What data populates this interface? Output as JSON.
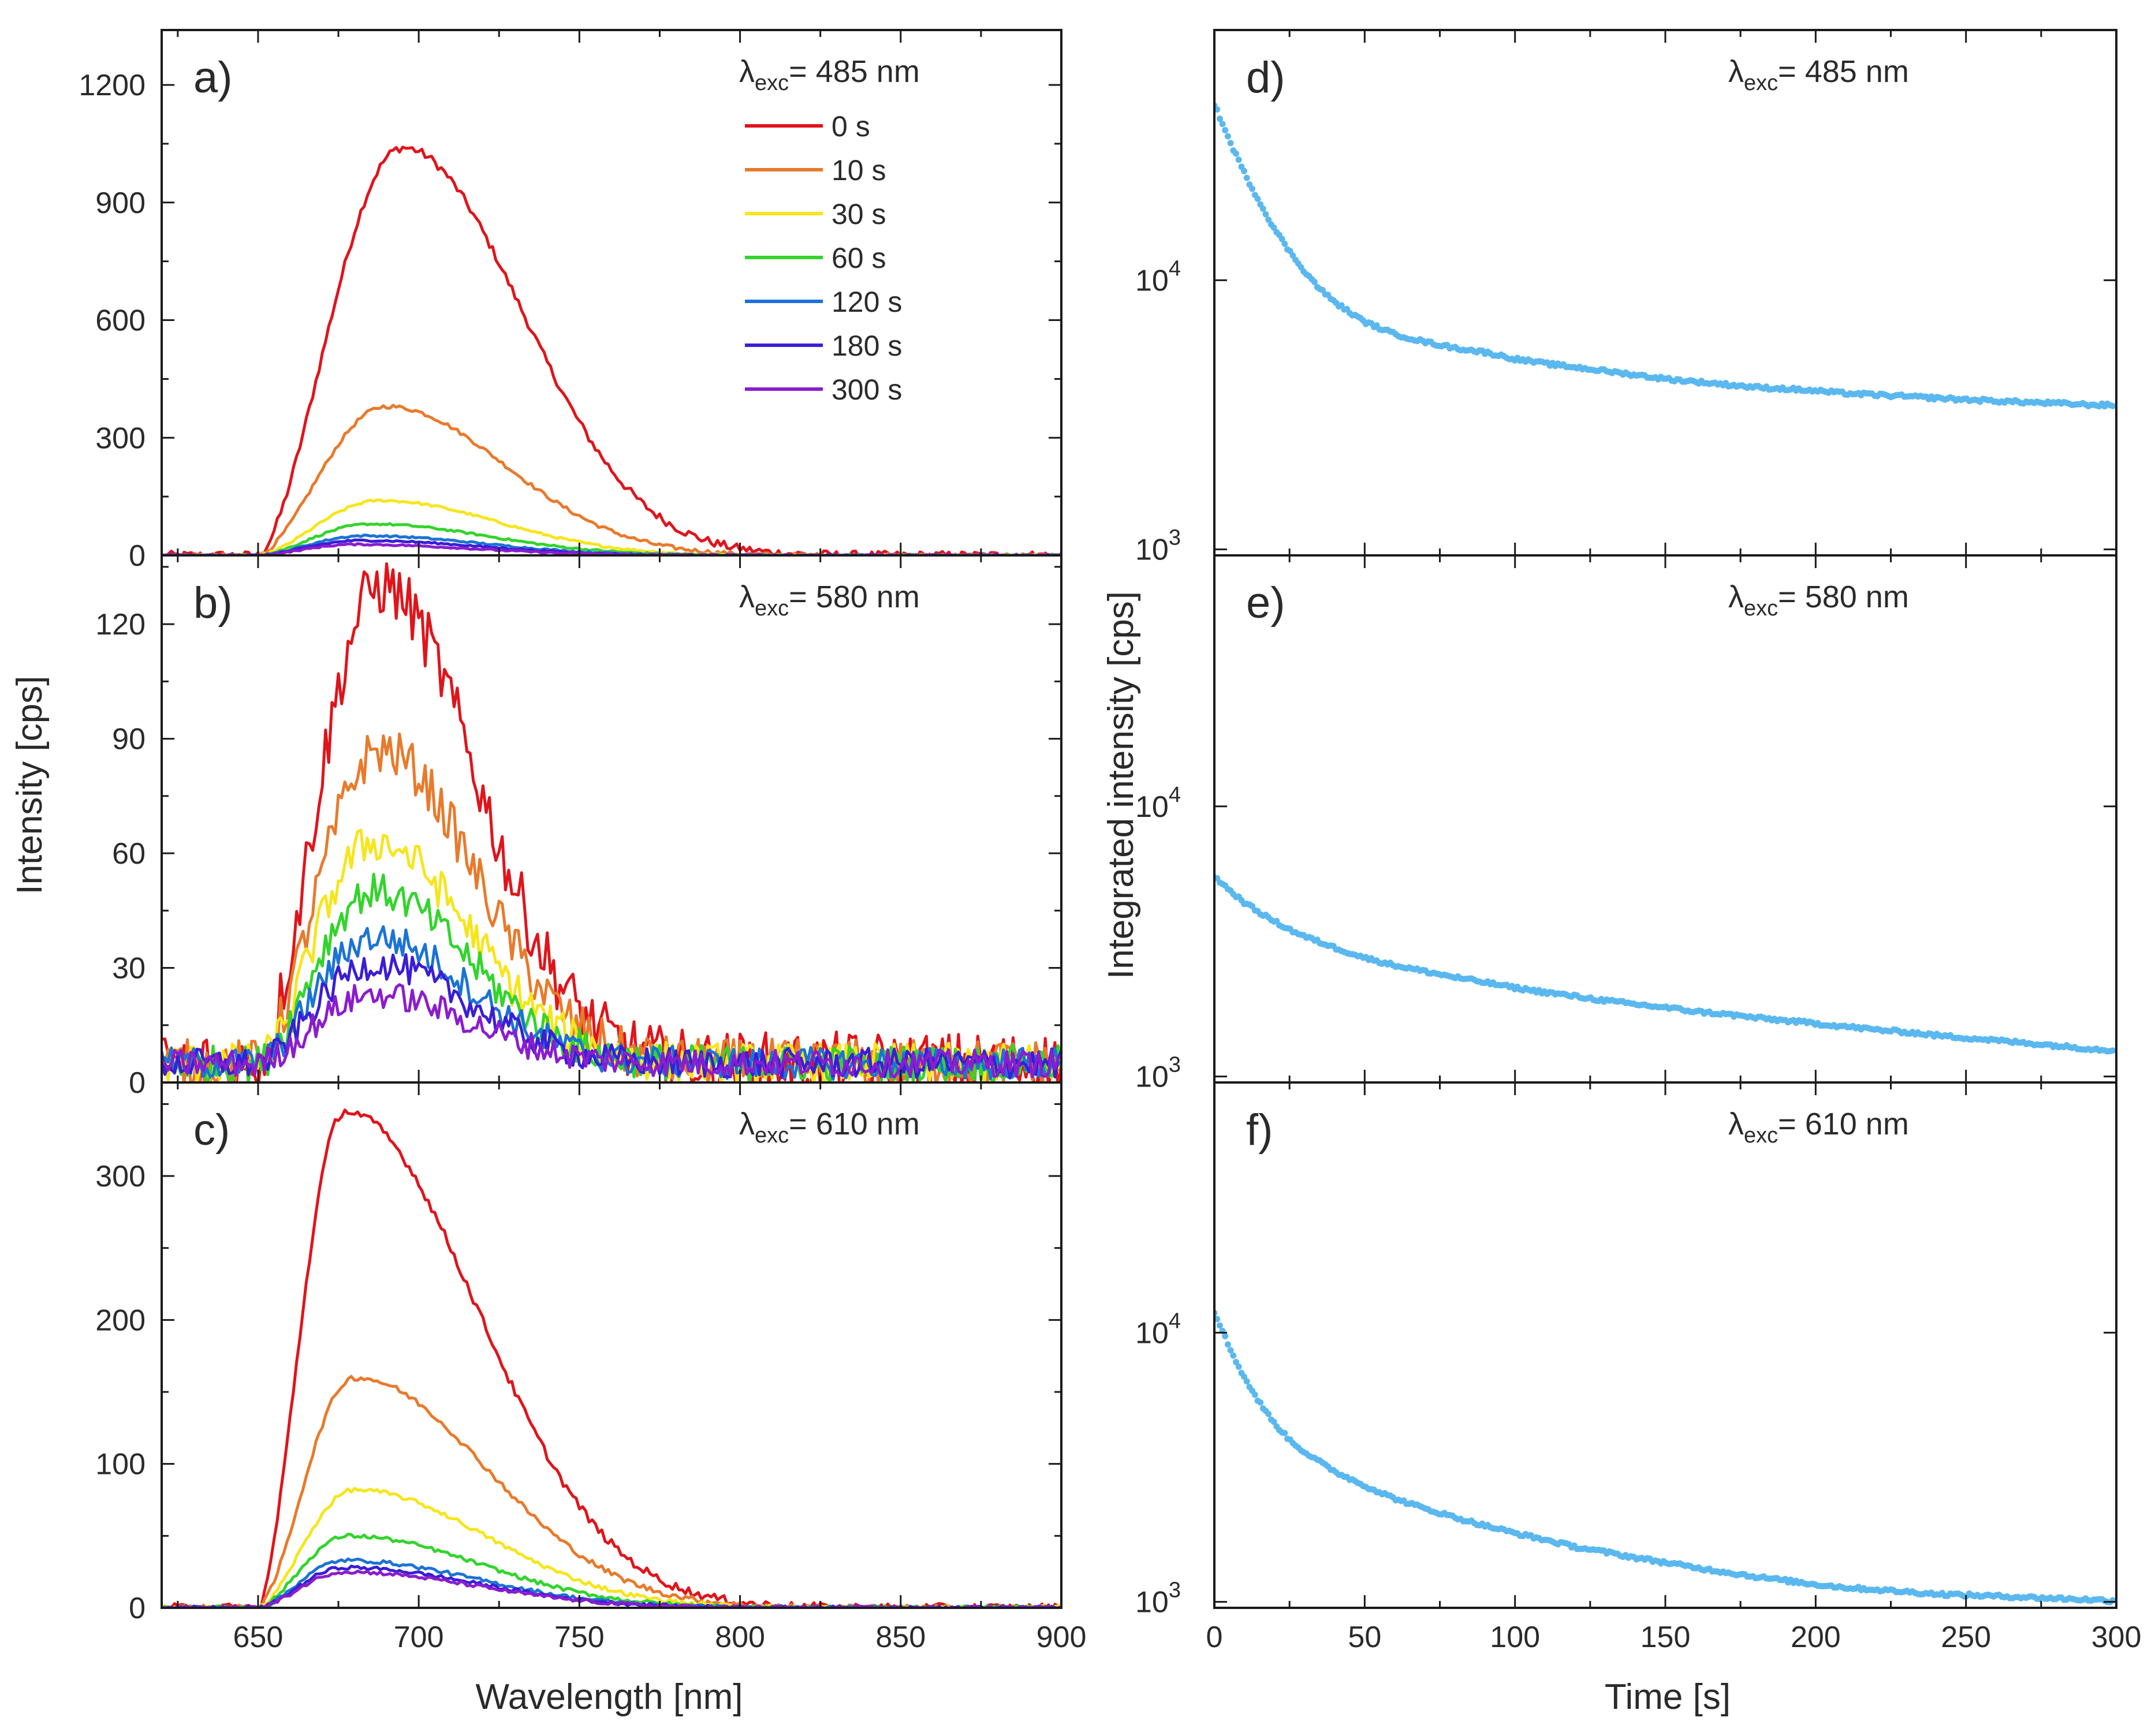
{
  "figure": {
    "left_xlabel": "Wavelength [nm]",
    "left_ylabel": "Intensity [cps]",
    "right_xlabel": "Time [s]",
    "right_ylabel": "Integrated intensity [cps]"
  },
  "legend": [
    {
      "label": "0 s",
      "color": "#e0141b"
    },
    {
      "label": "10 s",
      "color": "#e87a2b"
    },
    {
      "label": "30 s",
      "color": "#f6e51c"
    },
    {
      "label": "60 s",
      "color": "#33d42c"
    },
    {
      "label": "120 s",
      "color": "#1b73d6"
    },
    {
      "label": "180 s",
      "color": "#3a1ed6"
    },
    {
      "label": "300 s",
      "color": "#8a1dce"
    }
  ],
  "chart_data": [
    {
      "type": "line",
      "panel": "a)",
      "excitation": "485 nm",
      "title": "",
      "xlabel": "Wavelength [nm]",
      "ylabel": "Intensity [cps]",
      "xlim": [
        620,
        900
      ],
      "ylim": [
        0,
        1340
      ],
      "xticks": [
        650,
        700,
        750,
        800,
        850,
        900
      ],
      "yticks": [
        0,
        300,
        600,
        900,
        1200
      ],
      "legend_position": "top-right",
      "series": [
        {
          "name": "0 s",
          "peak_wavelength": 695,
          "peak_intensity": 1040
        },
        {
          "name": "10 s",
          "peak_wavelength": 690,
          "peak_intensity": 380
        },
        {
          "name": "30 s",
          "peak_wavelength": 688,
          "peak_intensity": 140
        },
        {
          "name": "60 s",
          "peak_wavelength": 685,
          "peak_intensity": 80
        },
        {
          "name": "120 s",
          "peak_wavelength": 683,
          "peak_intensity": 50
        },
        {
          "name": "180 s",
          "peak_wavelength": 682,
          "peak_intensity": 38
        },
        {
          "name": "300 s",
          "peak_wavelength": 680,
          "peak_intensity": 28
        }
      ]
    },
    {
      "type": "line",
      "panel": "b)",
      "excitation": "580 nm",
      "title": "",
      "xlabel": "Wavelength [nm]",
      "ylabel": "Intensity [cps]",
      "xlim": [
        620,
        900
      ],
      "ylim": [
        0,
        138
      ],
      "xticks": [
        650,
        700,
        750,
        800,
        850,
        900
      ],
      "yticks": [
        0,
        30,
        60,
        90,
        120
      ],
      "series": [
        {
          "name": "0 s",
          "peak_wavelength": 688,
          "peak_intensity": 130
        },
        {
          "name": "10 s",
          "peak_wavelength": 688,
          "peak_intensity": 87
        },
        {
          "name": "30 s",
          "peak_wavelength": 686,
          "peak_intensity": 63
        },
        {
          "name": "60 s",
          "peak_wavelength": 686,
          "peak_intensity": 50
        },
        {
          "name": "120 s",
          "peak_wavelength": 686,
          "peak_intensity": 38
        },
        {
          "name": "180 s",
          "peak_wavelength": 686,
          "peak_intensity": 31
        },
        {
          "name": "300 s",
          "peak_wavelength": 686,
          "peak_intensity": 23
        }
      ]
    },
    {
      "type": "line",
      "panel": "c)",
      "excitation": "610 nm",
      "title": "",
      "xlabel": "Wavelength [nm]",
      "ylabel": "Intensity [cps]",
      "xlim": [
        620,
        900
      ],
      "ylim": [
        0,
        365
      ],
      "xticks": [
        650,
        700,
        750,
        800,
        850,
        900
      ],
      "yticks": [
        0,
        100,
        200,
        300
      ],
      "series": [
        {
          "name": "0 s",
          "peak_wavelength": 677,
          "peak_intensity": 345
        },
        {
          "name": "10 s",
          "peak_wavelength": 680,
          "peak_intensity": 160
        },
        {
          "name": "30 s",
          "peak_wavelength": 680,
          "peak_intensity": 82
        },
        {
          "name": "60 s",
          "peak_wavelength": 678,
          "peak_intensity": 50
        },
        {
          "name": "120 s",
          "peak_wavelength": 677,
          "peak_intensity": 33
        },
        {
          "name": "180 s",
          "peak_wavelength": 677,
          "peak_intensity": 28
        },
        {
          "name": "300 s",
          "peak_wavelength": 677,
          "peak_intensity": 25
        }
      ]
    },
    {
      "type": "scatter",
      "panel": "d)",
      "excitation": "485 nm",
      "title": "",
      "xlabel": "Time [s]",
      "ylabel": "Integrated intensity [cps]",
      "xlim": [
        0,
        300
      ],
      "ylim": [
        950,
        85000
      ],
      "yscale": "log",
      "xticks": [
        0,
        50,
        100,
        150,
        200,
        250,
        300
      ],
      "yticks": [
        1000,
        10000
      ],
      "color": "#5bb8ef",
      "x": [
        0,
        5,
        10,
        15,
        20,
        25,
        30,
        35,
        40,
        45,
        50,
        60,
        70,
        80,
        90,
        100,
        110,
        120,
        130,
        140,
        150,
        160,
        170,
        180,
        190,
        200,
        210,
        220,
        230,
        240,
        250,
        260,
        270,
        280,
        290,
        298
      ],
      "y": [
        45000,
        33000,
        25000,
        19500,
        15500,
        12800,
        10800,
        9300,
        8300,
        7600,
        7000,
        6300,
        5900,
        5600,
        5400,
        5100,
        4900,
        4750,
        4600,
        4450,
        4300,
        4200,
        4100,
        4000,
        3950,
        3880,
        3800,
        3750,
        3700,
        3650,
        3600,
        3560,
        3520,
        3490,
        3450,
        3430
      ]
    },
    {
      "type": "scatter",
      "panel": "e)",
      "excitation": "580 nm",
      "title": "",
      "xlabel": "Time [s]",
      "ylabel": "Integrated intensity [cps]",
      "xlim": [
        0,
        300
      ],
      "ylim": [
        950,
        85000
      ],
      "yscale": "log",
      "xticks": [
        0,
        50,
        100,
        150,
        200,
        250,
        300
      ],
      "yticks": [
        1000,
        10000
      ],
      "color": "#5bb8ef",
      "x": [
        0,
        5,
        10,
        15,
        20,
        25,
        30,
        40,
        50,
        60,
        70,
        80,
        90,
        100,
        110,
        120,
        130,
        140,
        150,
        160,
        170,
        180,
        190,
        200,
        210,
        220,
        230,
        240,
        250,
        260,
        270,
        280,
        290,
        298
      ],
      "y": [
        5500,
        4900,
        4400,
        4050,
        3750,
        3500,
        3300,
        3000,
        2750,
        2580,
        2450,
        2330,
        2230,
        2130,
        2050,
        1980,
        1910,
        1850,
        1800,
        1740,
        1700,
        1650,
        1610,
        1570,
        1530,
        1490,
        1460,
        1420,
        1390,
        1360,
        1330,
        1300,
        1270,
        1250
      ]
    },
    {
      "type": "scatter",
      "panel": "f)",
      "excitation": "610 nm",
      "title": "",
      "xlabel": "Time [s]",
      "ylabel": "Integrated intensity [cps]",
      "xlim": [
        0,
        300
      ],
      "ylim": [
        950,
        85000
      ],
      "yscale": "log",
      "xticks": [
        0,
        50,
        100,
        150,
        200,
        250,
        300
      ],
      "yticks": [
        1000,
        10000
      ],
      "color": "#5bb8ef",
      "x": [
        0,
        5,
        10,
        15,
        20,
        25,
        30,
        40,
        50,
        60,
        70,
        80,
        90,
        100,
        110,
        120,
        130,
        140,
        150,
        160,
        170,
        180,
        190,
        200,
        210,
        220,
        230,
        240,
        250,
        260,
        270,
        280,
        290,
        298
      ],
      "y": [
        12000,
        8800,
        6800,
        5500,
        4600,
        4000,
        3600,
        3050,
        2700,
        2420,
        2220,
        2060,
        1920,
        1800,
        1700,
        1600,
        1530,
        1460,
        1400,
        1340,
        1290,
        1240,
        1200,
        1160,
        1130,
        1110,
        1090,
        1070,
        1060,
        1050,
        1040,
        1030,
        1020,
        1010
      ]
    }
  ]
}
